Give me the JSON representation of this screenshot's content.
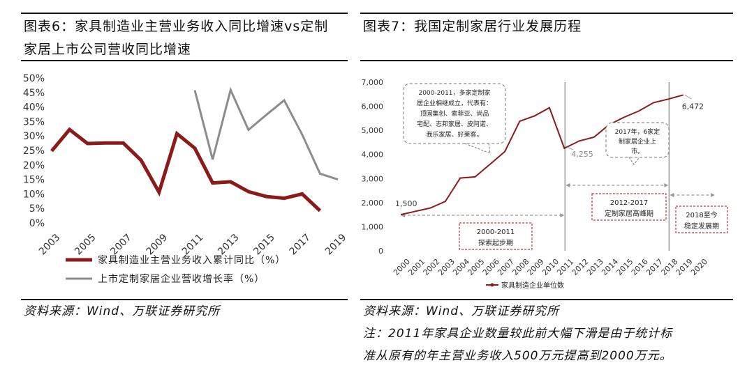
{
  "left": {
    "title_line1": "图表6：家具制造业主营业务收入同比增速vs定制",
    "title_line2": "家居上市公司营收同比增速",
    "source": "资料来源：Wind、万联证券研究所"
  },
  "right": {
    "title": "图表7：我国定制家居行业发展历程",
    "source": "资料来源：Wind、万联证券研究所",
    "note_line1": "注：2011年家具企业数量较此前大幅下滑是由于统计标",
    "note_line2": "准从原有的年主营业务收入500万元提高到2000万元。"
  },
  "colors": {
    "red": "#8b1a1a",
    "gray": "#8c8c8c",
    "annotation": "#c00000"
  },
  "chart_data": [
    {
      "type": "line",
      "title": "",
      "xlabel": "",
      "ylabel": "",
      "ylim": [
        0,
        50
      ],
      "y_ticks": [
        "0%",
        "5%",
        "10%",
        "15%",
        "20%",
        "25%",
        "30%",
        "35%",
        "40%",
        "45%",
        "50%"
      ],
      "x_ticks": [
        "2003",
        "2005",
        "2007",
        "2009",
        "2011",
        "2013",
        "2015",
        "2017",
        "2019"
      ],
      "grid": false,
      "legend_position": "bottom",
      "series": [
        {
          "name": "家具制造业主营业务收入累计同比（%）",
          "color": "#8b1a1a",
          "x": [
            2003,
            2004,
            2005,
            2006,
            2007,
            2008,
            2009,
            2010,
            2011,
            2012,
            2013,
            2014,
            2015,
            2016,
            2017,
            2018
          ],
          "values": [
            24.8,
            32.2,
            27.4,
            27.6,
            27.6,
            21.6,
            10.6,
            30.8,
            25.8,
            13.8,
            14.2,
            10.8,
            9.1,
            8.5,
            10.0,
            4.2
          ]
        },
        {
          "name": "上市定制家居企业营收增长率（%）",
          "color": "#8c8c8c",
          "x": [
            2011,
            2012,
            2013,
            2014,
            2015,
            2016,
            2017,
            2018,
            2019
          ],
          "values": [
            45.8,
            21.9,
            45.9,
            32.1,
            37.3,
            42.3,
            30.5,
            17.0,
            15.0
          ]
        }
      ]
    },
    {
      "type": "line",
      "title": "",
      "xlabel": "",
      "ylabel": "",
      "ylim": [
        0,
        7000
      ],
      "y_ticks": [
        "0",
        "1,000",
        "2,000",
        "3,000",
        "4,000",
        "5,000",
        "6,000",
        "7,000"
      ],
      "x_ticks": [
        "2000",
        "2001",
        "2002",
        "2003",
        "2004",
        "2005",
        "2006",
        "2007",
        "2008",
        "2009",
        "2010",
        "2011",
        "2012",
        "2013",
        "2014",
        "2015",
        "2016",
        "2017",
        "2018",
        "2019",
        "2020"
      ],
      "grid": false,
      "legend_position": "bottom",
      "series": [
        {
          "name": "家具制造企业单位数",
          "color": "#8b1a1a",
          "x": [
            2000,
            2001,
            2002,
            2003,
            2004,
            2005,
            2006,
            2007,
            2008,
            2009,
            2010,
            2011,
            2012,
            2013,
            2014,
            2015,
            2016,
            2017,
            2018,
            2019
          ],
          "values": [
            1500,
            1640,
            1780,
            2050,
            3020,
            3070,
            3590,
            4120,
            5380,
            5600,
            5940,
            4255,
            4560,
            4720,
            5230,
            5540,
            5800,
            6150,
            6300,
            6472
          ]
        }
      ],
      "data_labels": [
        {
          "x": 2000,
          "text": "1,500"
        },
        {
          "x": 2011,
          "text": "4,255"
        },
        {
          "x": 2019,
          "text": "6,472"
        }
      ],
      "annotations": {
        "bubble1": [
          "2000-2011，多家定制家",
          "居企业相继成立，代表有：",
          "顶固集创、索菲亚、尚品",
          "宅配、志邦家居、皮阿诺、",
          "我乐家居、好莱客。"
        ],
        "bubble2": [
          "2017年，6家定",
          "制家居企业上",
          "市。"
        ],
        "phase1": [
          "2000-2011",
          "探索起步期"
        ],
        "phase2": [
          "2012-2017",
          "定制家居高峰期"
        ],
        "phase3": [
          "2018至今",
          "稳定发展期"
        ]
      }
    }
  ]
}
